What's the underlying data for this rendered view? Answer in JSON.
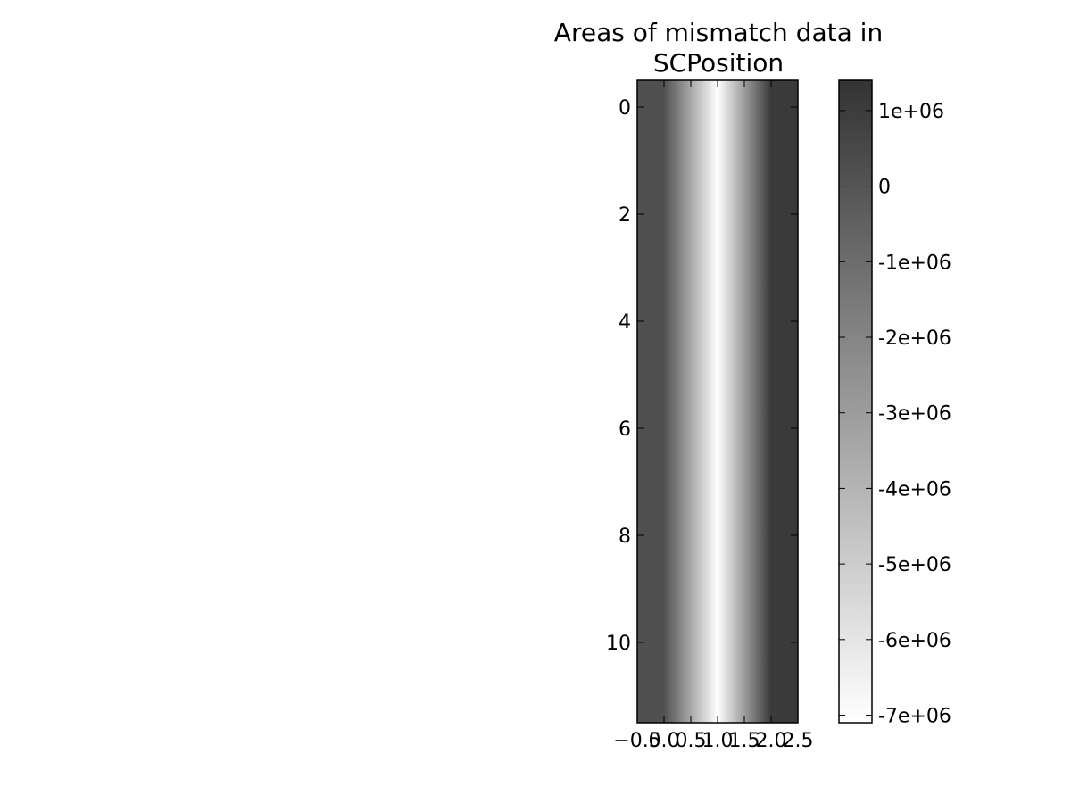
{
  "chart_data": {
    "type": "heatmap",
    "title_lines": [
      "Areas of mismatch data in",
      "SCPosition"
    ],
    "xlabel": "",
    "ylabel": "",
    "xlim": [
      -0.5,
      2.5
    ],
    "ylim": [
      11.5,
      -0.5
    ],
    "x_ticks": [
      {
        "value": -0.5,
        "label": "−0.5"
      },
      {
        "value": 0.0,
        "label": "0.0"
      },
      {
        "value": 0.5,
        "label": "0.5"
      },
      {
        "value": 1.0,
        "label": "1.0"
      },
      {
        "value": 1.5,
        "label": "1.5"
      },
      {
        "value": 2.0,
        "label": "2.0"
      },
      {
        "value": 2.5,
        "label": "2.5"
      }
    ],
    "y_ticks": [
      {
        "value": 0,
        "label": "0"
      },
      {
        "value": 2,
        "label": "2"
      },
      {
        "value": 4,
        "label": "4"
      },
      {
        "value": 6,
        "label": "6"
      },
      {
        "value": 8,
        "label": "8"
      },
      {
        "value": 10,
        "label": "10"
      }
    ],
    "columns": [
      0,
      1,
      2
    ],
    "rows": 12,
    "column_values": [
      200000,
      -7100000,
      1100000
    ],
    "interpolation": "smooth",
    "colormap": "gray_r",
    "colorbar": {
      "vmin": -7100000,
      "vmax": 1400000,
      "ticks": [
        {
          "value": 1000000,
          "label": "1e+06"
        },
        {
          "value": 0,
          "label": "0"
        },
        {
          "value": -1000000,
          "label": "-1e+06"
        },
        {
          "value": -2000000,
          "label": "-2e+06"
        },
        {
          "value": -3000000,
          "label": "-3e+06"
        },
        {
          "value": -4000000,
          "label": "-4e+06"
        },
        {
          "value": -5000000,
          "label": "-5e+06"
        },
        {
          "value": -6000000,
          "label": "-6e+06"
        },
        {
          "value": -7000000,
          "label": "-7e+06"
        }
      ]
    }
  }
}
